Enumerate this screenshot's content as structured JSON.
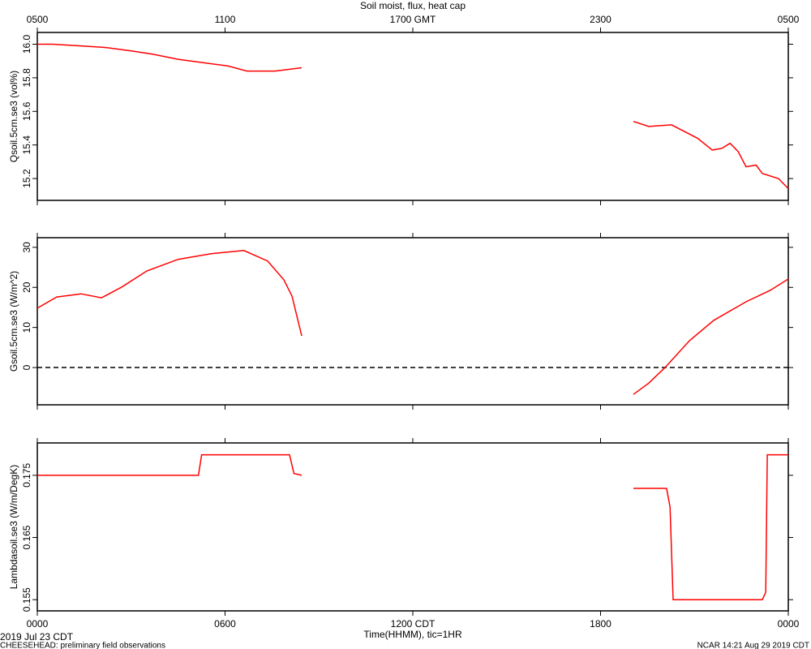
{
  "chart_data": [
    {
      "type": "line",
      "title": "Soil moist, flux, heat cap",
      "ylabel": "Qsoil.5cm.se3 (vol%)",
      "xlim": [
        0,
        24
      ],
      "top_xticks": [
        {
          "value": 0,
          "label": "0500"
        },
        {
          "value": 6,
          "label": "1100"
        },
        {
          "value": 12,
          "label": "1700 GMT"
        },
        {
          "value": 18,
          "label": "2300"
        },
        {
          "value": 24,
          "label": "0500"
        }
      ],
      "ylim": [
        15.07,
        16.07
      ],
      "yticks": [
        {
          "value": 15.2,
          "label": "15.2"
        },
        15.4,
        15.6,
        15.8,
        {
          "value": 16.0,
          "label": "16.0"
        }
      ],
      "series": [
        {
          "color": "#ff0000",
          "x": [
            0,
            0.5,
            1.4,
            2.2,
            3.0,
            3.7,
            4.5,
            5.3,
            6.1,
            6.7,
            7.6,
            8.45,
            13,
            19.05,
            19.54,
            20.27,
            21.1,
            21.57,
            21.88,
            22.14,
            22.4,
            22.65,
            22.97,
            23.17,
            23.69,
            24.0
          ],
          "values": [
            16.0,
            16.0,
            15.99,
            15.98,
            15.96,
            15.94,
            15.91,
            15.89,
            15.87,
            15.84,
            15.84,
            15.86,
            null,
            15.54,
            15.51,
            15.52,
            15.44,
            15.37,
            15.38,
            15.41,
            15.36,
            15.27,
            15.28,
            15.23,
            15.2,
            15.14
          ]
        }
      ]
    },
    {
      "type": "line",
      "ylabel": "Gsoil.5cm.se3 (W/m^2)",
      "xlim": [
        0,
        24
      ],
      "ylim": [
        -9.3,
        32.4
      ],
      "yticks": [
        0,
        10,
        20,
        30
      ],
      "zero_line": true,
      "series": [
        {
          "color": "#ff0000",
          "x": [
            0,
            0.62,
            1.4,
            2.05,
            2.7,
            3.5,
            4.5,
            5.55,
            6.6,
            7.36,
            7.88,
            8.14,
            8.45,
            13,
            19.05,
            19.54,
            20.06,
            20.84,
            21.62,
            22.65,
            23.43,
            24
          ],
          "values": [
            14.8,
            17.6,
            18.4,
            17.4,
            20.1,
            24.1,
            27.0,
            28.4,
            29.2,
            26.6,
            21.9,
            17.8,
            7.9,
            null,
            -6.7,
            -3.9,
            0,
            6.7,
            11.8,
            16.4,
            19.3,
            22.1
          ]
        }
      ]
    },
    {
      "type": "line",
      "ylabel": "Lambdasoil.se3 (W/m/DegK)",
      "xlim": [
        0,
        24
      ],
      "xticks": [
        {
          "value": 0,
          "label": "0000"
        },
        {
          "value": 6,
          "label": "0600"
        },
        {
          "value": 12,
          "label": "1200 CDT"
        },
        {
          "value": 18,
          "label": "1800"
        },
        {
          "value": 24,
          "label": "0000"
        }
      ],
      "xlabel": "Time(HHMM), tic=1HR",
      "ylim": [
        0.1532,
        0.1802
      ],
      "yticks": [
        0.155,
        0.165,
        0.175
      ],
      "series": [
        {
          "color": "#ff0000",
          "x": [
            0,
            5.15,
            5.25,
            8.06,
            8.2,
            8.45,
            13,
            19.05,
            20.11,
            20.22,
            20.32,
            23.17,
            23.28,
            23.33,
            24
          ],
          "values": [
            0.175,
            0.175,
            0.1783,
            0.1783,
            0.1753,
            0.175,
            null,
            0.1729,
            0.1729,
            0.1699,
            0.155,
            0.155,
            0.1562,
            0.1783,
            0.1783
          ]
        }
      ]
    }
  ],
  "footer": {
    "date": "2019 Jul 23 CDT",
    "project": "CHEESEHEAD: preliminary field observations",
    "stamp": "NCAR 14:21 Aug 29 2019 CDT"
  }
}
